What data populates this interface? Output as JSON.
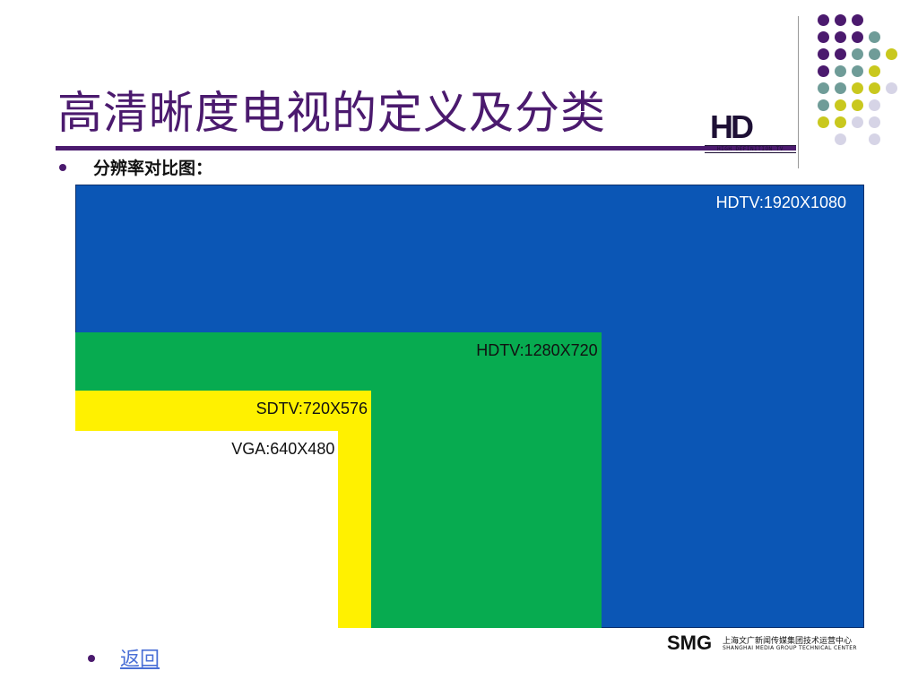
{
  "slide": {
    "title": "高清晰度电视的定义及分类",
    "subtitle": "分辨率对比图：",
    "back_link": "返回"
  },
  "logo": {
    "hd_main": "HD",
    "hd_sub": "HIGH DEFINITION TV"
  },
  "footer": {
    "smg_main": "SMG",
    "smg_cn": "上海文广新闻传媒集团技术运营中心",
    "smg_en": "SHANGHAI MEDIA GROUP TECHNICAL CENTER"
  },
  "colors": {
    "title": "#4b1a6e",
    "hdtv_1080": "#0b56b5",
    "hdtv_720": "#07ab50",
    "sdtv": "#fff100",
    "vga": "#ffffff",
    "dot_purple": "#4b1a6e",
    "dot_teal": "#6f9c98",
    "dot_olive": "#c9c81e",
    "dot_lavender": "#d6d4e6"
  },
  "resolutions": [
    {
      "label": "HDTV:1920X1080",
      "width": 1920,
      "height": 1080
    },
    {
      "label": "HDTV:1280X720",
      "width": 1280,
      "height": 720
    },
    {
      "label": "SDTV:720X576",
      "width": 720,
      "height": 576
    },
    {
      "label": "VGA:640X480",
      "width": 640,
      "height": 480
    }
  ]
}
